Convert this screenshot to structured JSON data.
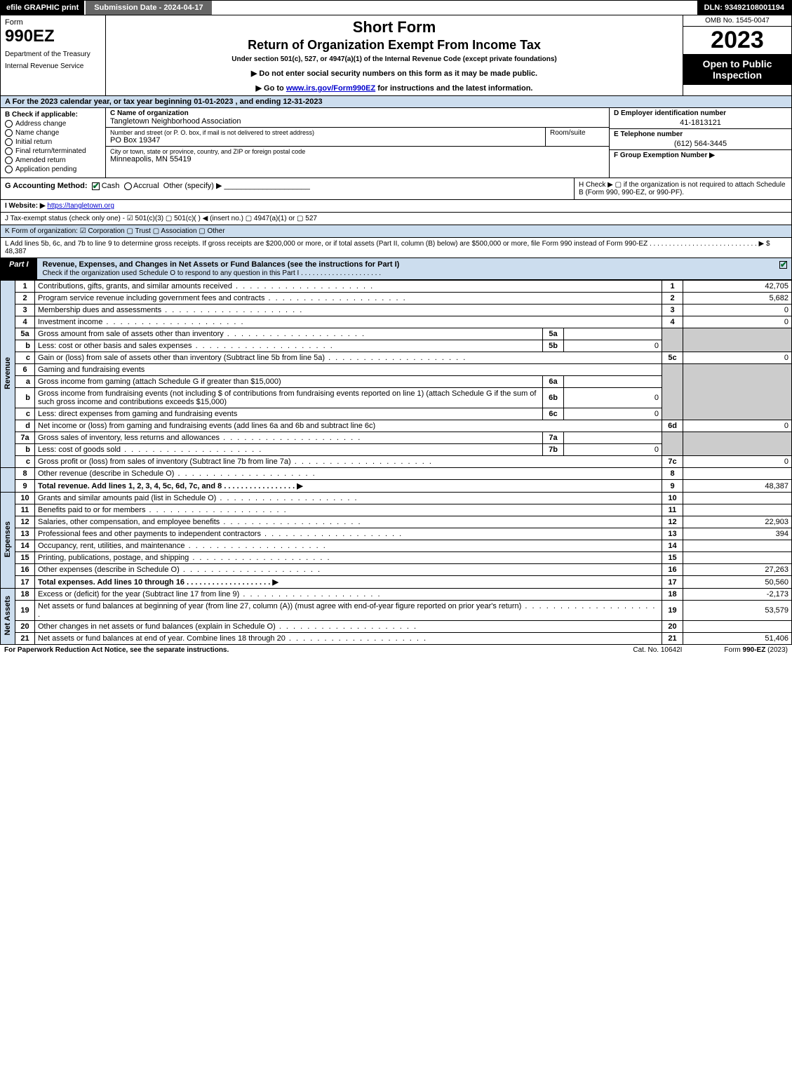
{
  "topbar": {
    "efile": "efile GRAPHIC print",
    "submission": "Submission Date - 2024-04-17",
    "dln": "DLN: 93492108001194"
  },
  "header": {
    "form_label": "Form",
    "form_number": "990EZ",
    "dept1": "Department of the Treasury",
    "dept2": "Internal Revenue Service",
    "title1": "Short Form",
    "title2": "Return of Organization Exempt From Income Tax",
    "subtitle": "Under section 501(c), 527, or 4947(a)(1) of the Internal Revenue Code (except private foundations)",
    "inst1": "▶ Do not enter social security numbers on this form as it may be made public.",
    "inst2_pre": "▶ Go to ",
    "inst2_link": "www.irs.gov/Form990EZ",
    "inst2_post": " for instructions and the latest information.",
    "omb": "OMB No. 1545-0047",
    "year": "2023",
    "open": "Open to Public Inspection"
  },
  "a": "A  For the 2023 calendar year, or tax year beginning 01-01-2023 , and ending 12-31-2023",
  "b": {
    "title": "B  Check if applicable:",
    "opts": [
      "Address change",
      "Name change",
      "Initial return",
      "Final return/terminated",
      "Amended return",
      "Application pending"
    ]
  },
  "c": {
    "lbl_name": "C Name of organization",
    "name": "Tangletown Neighborhood Association",
    "lbl_street": "Number and street (or P. O. box, if mail is not delivered to street address)",
    "street": "PO Box 19347",
    "lbl_room": "Room/suite",
    "lbl_city": "City or town, state or province, country, and ZIP or foreign postal code",
    "city": "Minneapolis, MN  55419"
  },
  "d": {
    "lbl": "D Employer identification number",
    "val": "41-1813121"
  },
  "e": {
    "lbl": "E Telephone number",
    "val": "(612) 564-3445"
  },
  "f": {
    "lbl": "F Group Exemption Number   ▶",
    "val": ""
  },
  "g": {
    "lbl": "G Accounting Method:",
    "cash": "Cash",
    "accrual": "Accrual",
    "other": "Other (specify) ▶"
  },
  "h": "H  Check ▶  ▢  if the organization is not required to attach Schedule B (Form 990, 990-EZ, or 990-PF).",
  "i": {
    "lbl": "I Website: ▶",
    "val": "https://tangletown.org"
  },
  "j": "J Tax-exempt status (check only one) -  ☑ 501(c)(3)  ▢ 501(c)(  ) ◀ (insert no.)  ▢ 4947(a)(1) or  ▢ 527",
  "k": "K Form of organization:  ☑ Corporation  ▢ Trust  ▢ Association  ▢ Other",
  "l": {
    "text": "L Add lines 5b, 6c, and 7b to line 9 to determine gross receipts. If gross receipts are $200,000 or more, or if total assets (Part II, column (B) below) are $500,000 or more, file Form 990 instead of Form 990-EZ  .  .  .  .  .  .  .  .  .  .  .  .  .  .  .  .  .  .  .  .  .  .  .  .  .  .  .  . ▶ $",
    "val": "48,387"
  },
  "part1": {
    "tag": "Part I",
    "title": "Revenue, Expenses, and Changes in Net Assets or Fund Balances (see the instructions for Part I)",
    "check_line": "Check if the organization used Schedule O to respond to any question in this Part I  .  .  .  .  .  .  .  .  .  .  .  .  .  .  .  .  .  .  .  .  ."
  },
  "sections": {
    "revenue": "Revenue",
    "expenses": "Expenses",
    "netassets": "Net Assets"
  },
  "lines": {
    "l1": {
      "n": "1",
      "d": "Contributions, gifts, grants, and similar amounts received",
      "r": "1",
      "v": "42,705"
    },
    "l2": {
      "n": "2",
      "d": "Program service revenue including government fees and contracts",
      "r": "2",
      "v": "5,682"
    },
    "l3": {
      "n": "3",
      "d": "Membership dues and assessments",
      "r": "3",
      "v": "0"
    },
    "l4": {
      "n": "4",
      "d": "Investment income",
      "r": "4",
      "v": "0"
    },
    "l5a": {
      "n": "5a",
      "d": "Gross amount from sale of assets other than inventory",
      "il": "5a",
      "iv": ""
    },
    "l5b": {
      "n": "b",
      "d": "Less: cost or other basis and sales expenses",
      "il": "5b",
      "iv": "0"
    },
    "l5c": {
      "n": "c",
      "d": "Gain or (loss) from sale of assets other than inventory (Subtract line 5b from line 5a)",
      "r": "5c",
      "v": "0"
    },
    "l6": {
      "n": "6",
      "d": "Gaming and fundraising events"
    },
    "l6a": {
      "n": "a",
      "d": "Gross income from gaming (attach Schedule G if greater than $15,000)",
      "il": "6a",
      "iv": ""
    },
    "l6b": {
      "n": "b",
      "d": "Gross income from fundraising events (not including $                  of contributions from fundraising events reported on line 1) (attach Schedule G if the sum of such gross income and contributions exceeds $15,000)",
      "il": "6b",
      "iv": "0"
    },
    "l6c": {
      "n": "c",
      "d": "Less: direct expenses from gaming and fundraising events",
      "il": "6c",
      "iv": "0"
    },
    "l6d": {
      "n": "d",
      "d": "Net income or (loss) from gaming and fundraising events (add lines 6a and 6b and subtract line 6c)",
      "r": "6d",
      "v": "0"
    },
    "l7a": {
      "n": "7a",
      "d": "Gross sales of inventory, less returns and allowances",
      "il": "7a",
      "iv": ""
    },
    "l7b": {
      "n": "b",
      "d": "Less: cost of goods sold",
      "il": "7b",
      "iv": "0"
    },
    "l7c": {
      "n": "c",
      "d": "Gross profit or (loss) from sales of inventory (Subtract line 7b from line 7a)",
      "r": "7c",
      "v": "0"
    },
    "l8": {
      "n": "8",
      "d": "Other revenue (describe in Schedule O)",
      "r": "8",
      "v": ""
    },
    "l9": {
      "n": "9",
      "d": "Total revenue. Add lines 1, 2, 3, 4, 5c, 6d, 7c, and 8   .  .  .  .  .  .  .  .  .  .  .  .  .  .  .  .  . ▶",
      "r": "9",
      "v": "48,387",
      "bold": true
    },
    "l10": {
      "n": "10",
      "d": "Grants and similar amounts paid (list in Schedule O)",
      "r": "10",
      "v": ""
    },
    "l11": {
      "n": "11",
      "d": "Benefits paid to or for members",
      "r": "11",
      "v": ""
    },
    "l12": {
      "n": "12",
      "d": "Salaries, other compensation, and employee benefits",
      "r": "12",
      "v": "22,903"
    },
    "l13": {
      "n": "13",
      "d": "Professional fees and other payments to independent contractors",
      "r": "13",
      "v": "394"
    },
    "l14": {
      "n": "14",
      "d": "Occupancy, rent, utilities, and maintenance",
      "r": "14",
      "v": ""
    },
    "l15": {
      "n": "15",
      "d": "Printing, publications, postage, and shipping",
      "r": "15",
      "v": ""
    },
    "l16": {
      "n": "16",
      "d": "Other expenses (describe in Schedule O)",
      "r": "16",
      "v": "27,263"
    },
    "l17": {
      "n": "17",
      "d": "Total expenses. Add lines 10 through 16    .  .  .  .  .  .  .  .  .  .  .  .  .  .  .  .  .  .  .  . ▶",
      "r": "17",
      "v": "50,560",
      "bold": true
    },
    "l18": {
      "n": "18",
      "d": "Excess or (deficit) for the year (Subtract line 17 from line 9)",
      "r": "18",
      "v": "-2,173"
    },
    "l19": {
      "n": "19",
      "d": "Net assets or fund balances at beginning of year (from line 27, column (A)) (must agree with end-of-year figure reported on prior year's return)",
      "r": "19",
      "v": "53,579"
    },
    "l20": {
      "n": "20",
      "d": "Other changes in net assets or fund balances (explain in Schedule O)",
      "r": "20",
      "v": ""
    },
    "l21": {
      "n": "21",
      "d": "Net assets or fund balances at end of year. Combine lines 18 through 20",
      "r": "21",
      "v": "51,406"
    }
  },
  "footer": {
    "left": "For Paperwork Reduction Act Notice, see the separate instructions.",
    "mid": "Cat. No. 10642I",
    "right_pre": "Form ",
    "right_bold": "990-EZ",
    "right_post": " (2023)"
  }
}
